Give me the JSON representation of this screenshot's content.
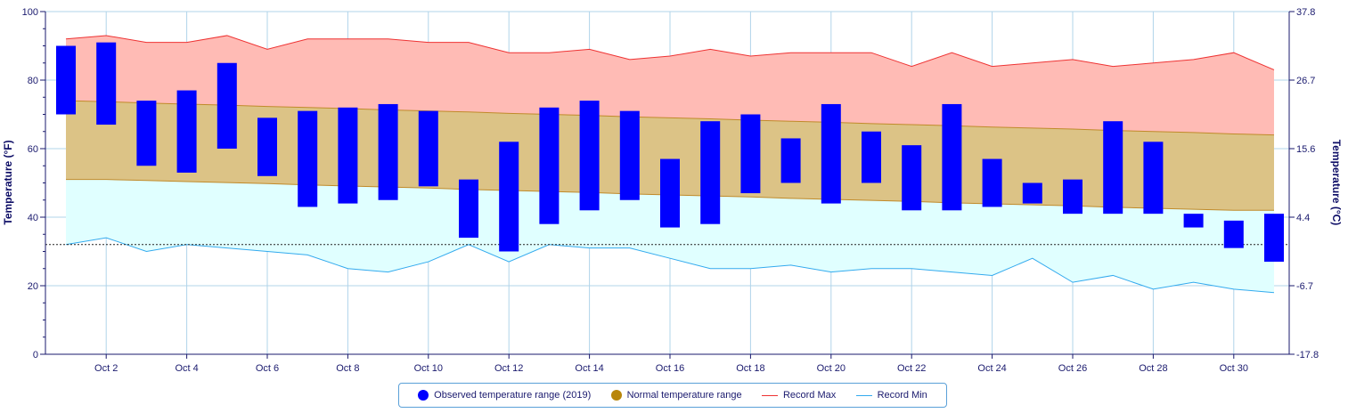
{
  "chart_data": {
    "type": "range-bar",
    "x": [
      "Oct 1",
      "Oct 2",
      "Oct 3",
      "Oct 4",
      "Oct 5",
      "Oct 6",
      "Oct 7",
      "Oct 8",
      "Oct 9",
      "Oct 10",
      "Oct 11",
      "Oct 12",
      "Oct 13",
      "Oct 14",
      "Oct 15",
      "Oct 16",
      "Oct 17",
      "Oct 18",
      "Oct 19",
      "Oct 20",
      "Oct 21",
      "Oct 22",
      "Oct 23",
      "Oct 24",
      "Oct 25",
      "Oct 26",
      "Oct 27",
      "Oct 28",
      "Oct 29",
      "Oct 30",
      "Oct 31"
    ],
    "x_tick_labels": [
      "Oct 2",
      "Oct 4",
      "Oct 6",
      "Oct 8",
      "Oct 10",
      "Oct 12",
      "Oct 14",
      "Oct 16",
      "Oct 18",
      "Oct 20",
      "Oct 22",
      "Oct 24",
      "Oct 26",
      "Oct 28",
      "Oct 30"
    ],
    "ylabel_left": "Temperature (°F)",
    "ylabel_right": "Temperature (°C)",
    "ylim": [
      0,
      100
    ],
    "y_ticks_left": [
      "0",
      "20",
      "40",
      "60",
      "80",
      "100"
    ],
    "y_ticks_right": [
      "-17.8",
      "-6.7",
      "4.4",
      "15.6",
      "26.7",
      "37.8"
    ],
    "freezing_line": 32,
    "grid": true,
    "legend_position": "bottom",
    "series": [
      {
        "name": "Observed temperature range (2019)",
        "color": "#0000ff",
        "low": [
          70,
          67,
          55,
          53,
          60,
          52,
          43,
          44,
          45,
          49,
          34,
          30,
          38,
          42,
          45,
          37,
          38,
          47,
          50,
          44,
          50,
          42,
          42,
          43,
          44,
          41,
          41,
          41,
          37,
          31,
          27
        ],
        "high": [
          90,
          91,
          74,
          77,
          85,
          69,
          71,
          72,
          73,
          71,
          51,
          62,
          72,
          74,
          71,
          57,
          68,
          70,
          63,
          73,
          65,
          61,
          73,
          57,
          50,
          51,
          68,
          62,
          41,
          39,
          41
        ]
      },
      {
        "name": "Normal temperature range",
        "color": "#b8860b",
        "low": [
          51,
          51,
          50.7,
          50.4,
          50.1,
          49.8,
          49.4,
          49.1,
          48.8,
          48.5,
          48.1,
          47.8,
          47.5,
          47.2,
          46.8,
          46.5,
          46.2,
          45.9,
          45.5,
          45.2,
          44.9,
          44.6,
          44.2,
          43.9,
          43.6,
          43.3,
          42.9,
          42.6,
          42.3,
          42,
          42
        ],
        "high": [
          74,
          73.7,
          73.3,
          73,
          72.7,
          72.3,
          72,
          71.7,
          71.3,
          71,
          70.7,
          70.3,
          70,
          69.7,
          69.3,
          69,
          68.7,
          68.3,
          68,
          67.7,
          67.3,
          67,
          66.7,
          66.3,
          66,
          65.7,
          65.3,
          65,
          64.7,
          64.3,
          64
        ]
      },
      {
        "name": "Record Max",
        "color": "#ee3333",
        "values": [
          92,
          93,
          91,
          91,
          93,
          89,
          92,
          92,
          92,
          91,
          91,
          88,
          88,
          89,
          86,
          87,
          89,
          87,
          88,
          88,
          88,
          84,
          88,
          84,
          85,
          86,
          84,
          85,
          86,
          88,
          83
        ]
      },
      {
        "name": "Record Min",
        "color": "#33aaee",
        "values": [
          32,
          34,
          30,
          32,
          31,
          30,
          29,
          25,
          24,
          27,
          32,
          27,
          32,
          31,
          31,
          28,
          25,
          25,
          26,
          24,
          25,
          25,
          24,
          23,
          28,
          21,
          23,
          19,
          21,
          19,
          18
        ]
      }
    ]
  }
}
